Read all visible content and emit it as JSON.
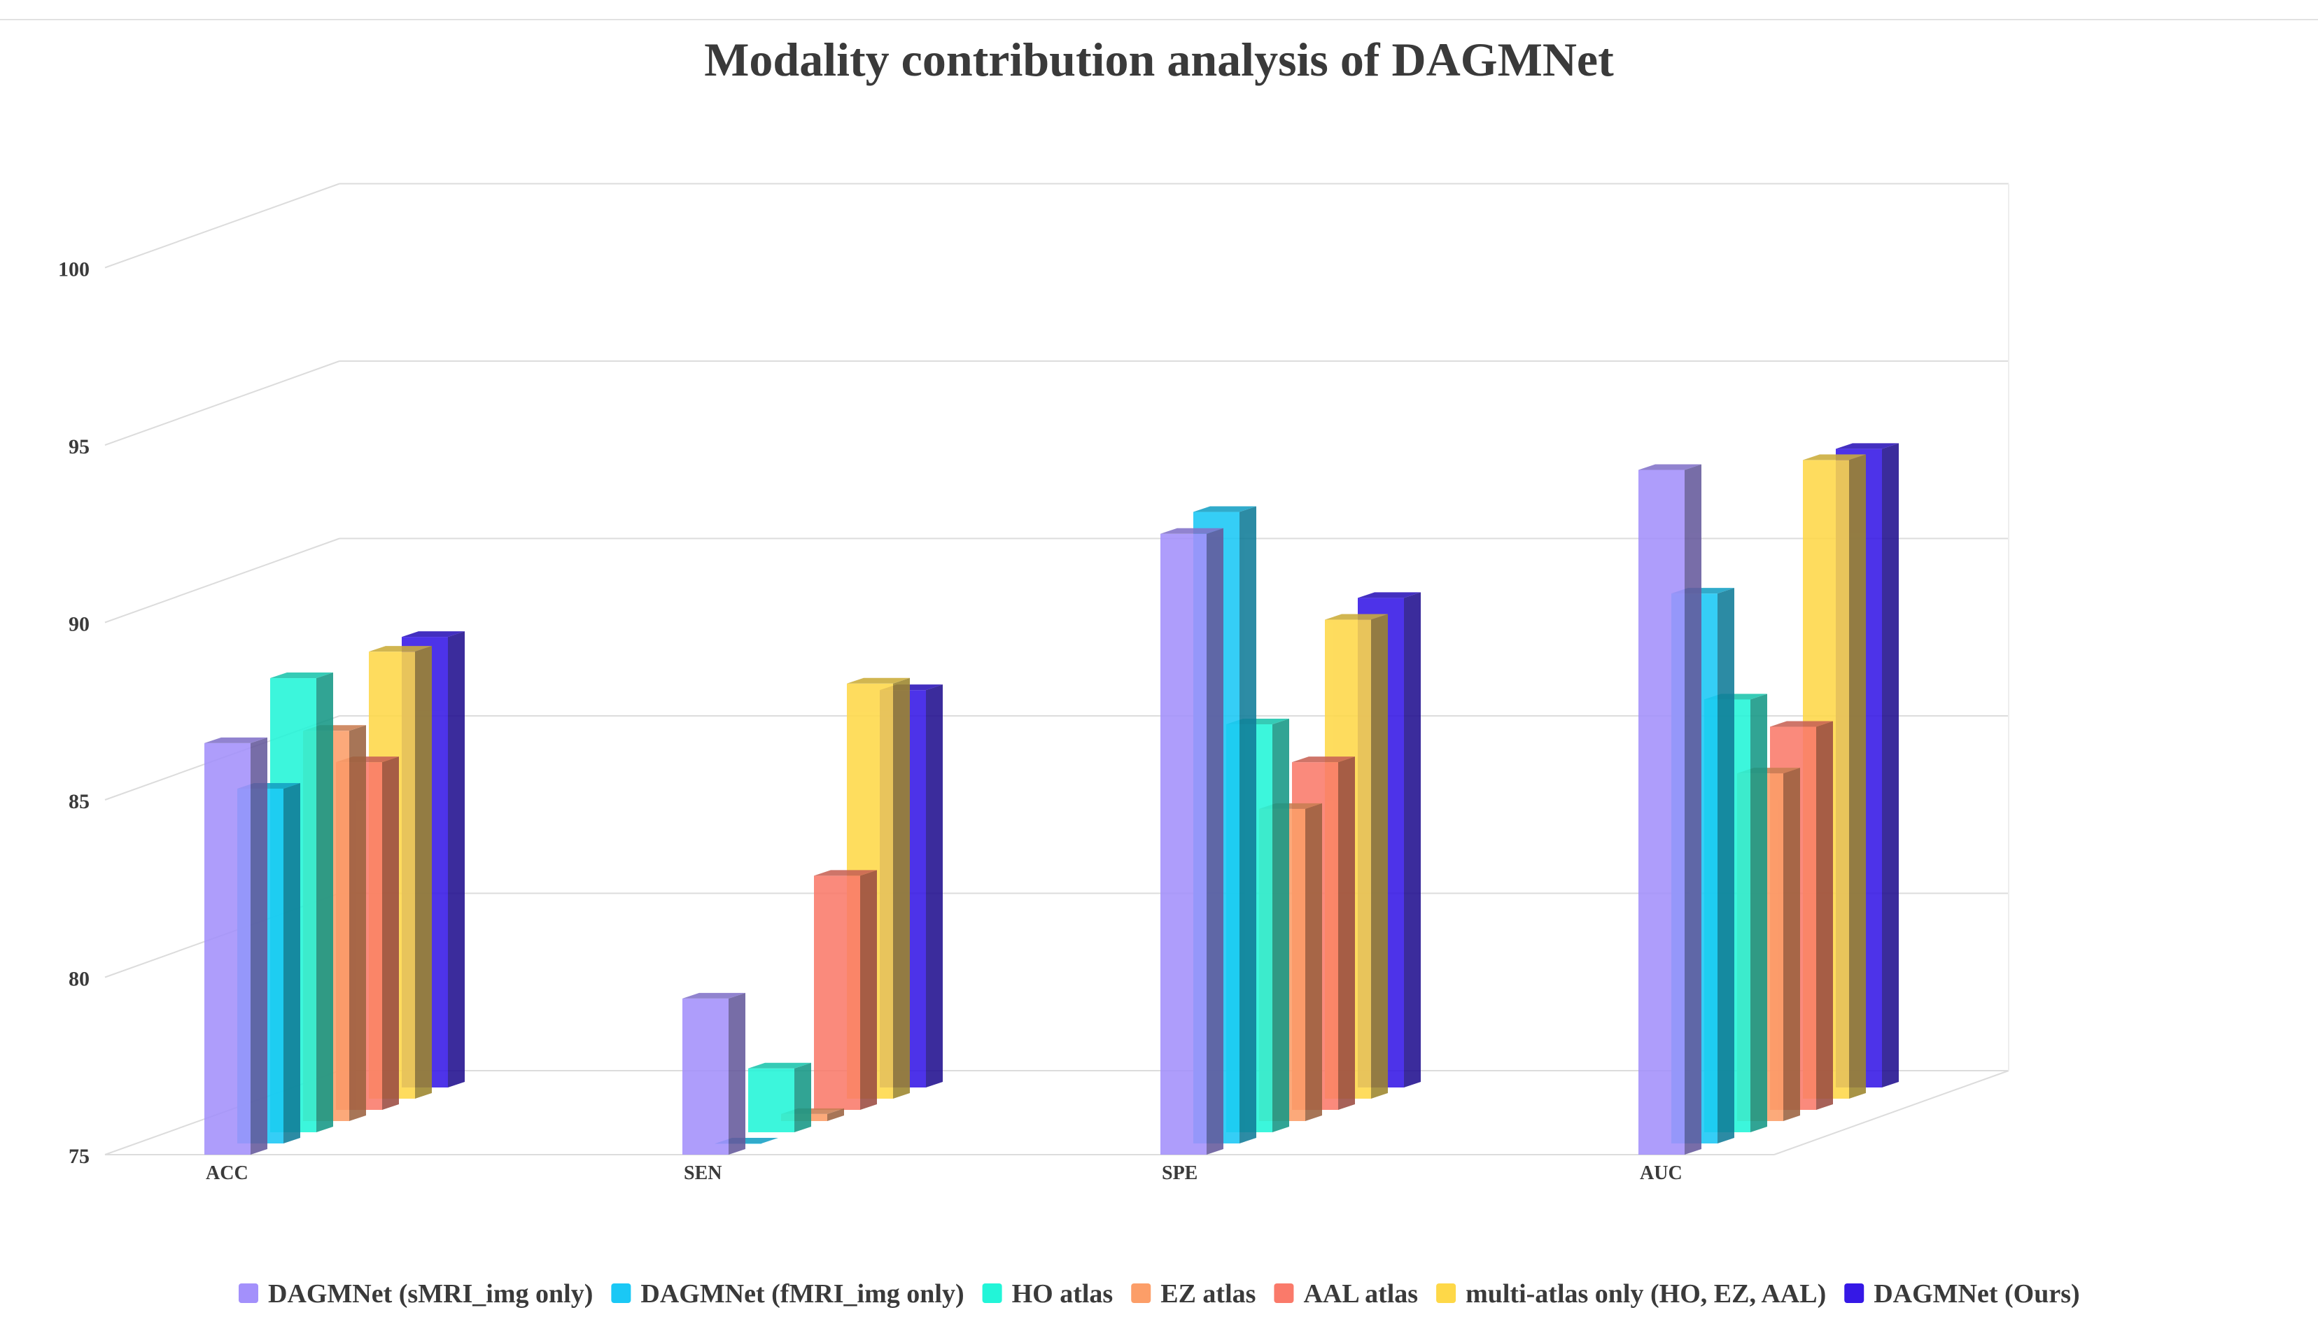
{
  "chart_data": {
    "type": "bar",
    "title": "Modality contribution analysis of DAGMNet",
    "xlabel": "",
    "ylabel": "",
    "categories": [
      "ACC",
      "SEN",
      "SPE",
      "AUC"
    ],
    "ylim": [
      75,
      100
    ],
    "yticks": [
      75,
      80,
      85,
      90,
      95,
      100
    ],
    "grid": true,
    "legend_position": "bottom",
    "series": [
      {
        "name": "DAGMNet (sMRI_img only)",
        "color": "#a390fb",
        "values": [
          86.6,
          79.4,
          92.5,
          94.3
        ]
      },
      {
        "name": "DAGMNet (fMRI_img only)",
        "color": "#1ac8f5",
        "values": [
          85.0,
          75.0,
          92.8,
          90.5
        ]
      },
      {
        "name": "HO atlas",
        "color": "#22f5d8",
        "values": [
          87.8,
          76.8,
          86.5,
          87.2
        ]
      },
      {
        "name": "EZ atlas",
        "color": "#fc9e68",
        "values": [
          86.0,
          75.2,
          83.8,
          84.8
        ]
      },
      {
        "name": "AAL atlas",
        "color": "#fa7a6a",
        "values": [
          84.8,
          81.6,
          84.8,
          85.8
        ]
      },
      {
        "name": "multi-atlas only (HO, EZ, AAL)",
        "color": "#fed848",
        "values": [
          87.6,
          86.7,
          88.5,
          93.0
        ]
      },
      {
        "name": "DAGMNet (Ours)",
        "color": "#3518e6",
        "values": [
          87.7,
          86.2,
          88.8,
          93.0
        ]
      }
    ]
  }
}
